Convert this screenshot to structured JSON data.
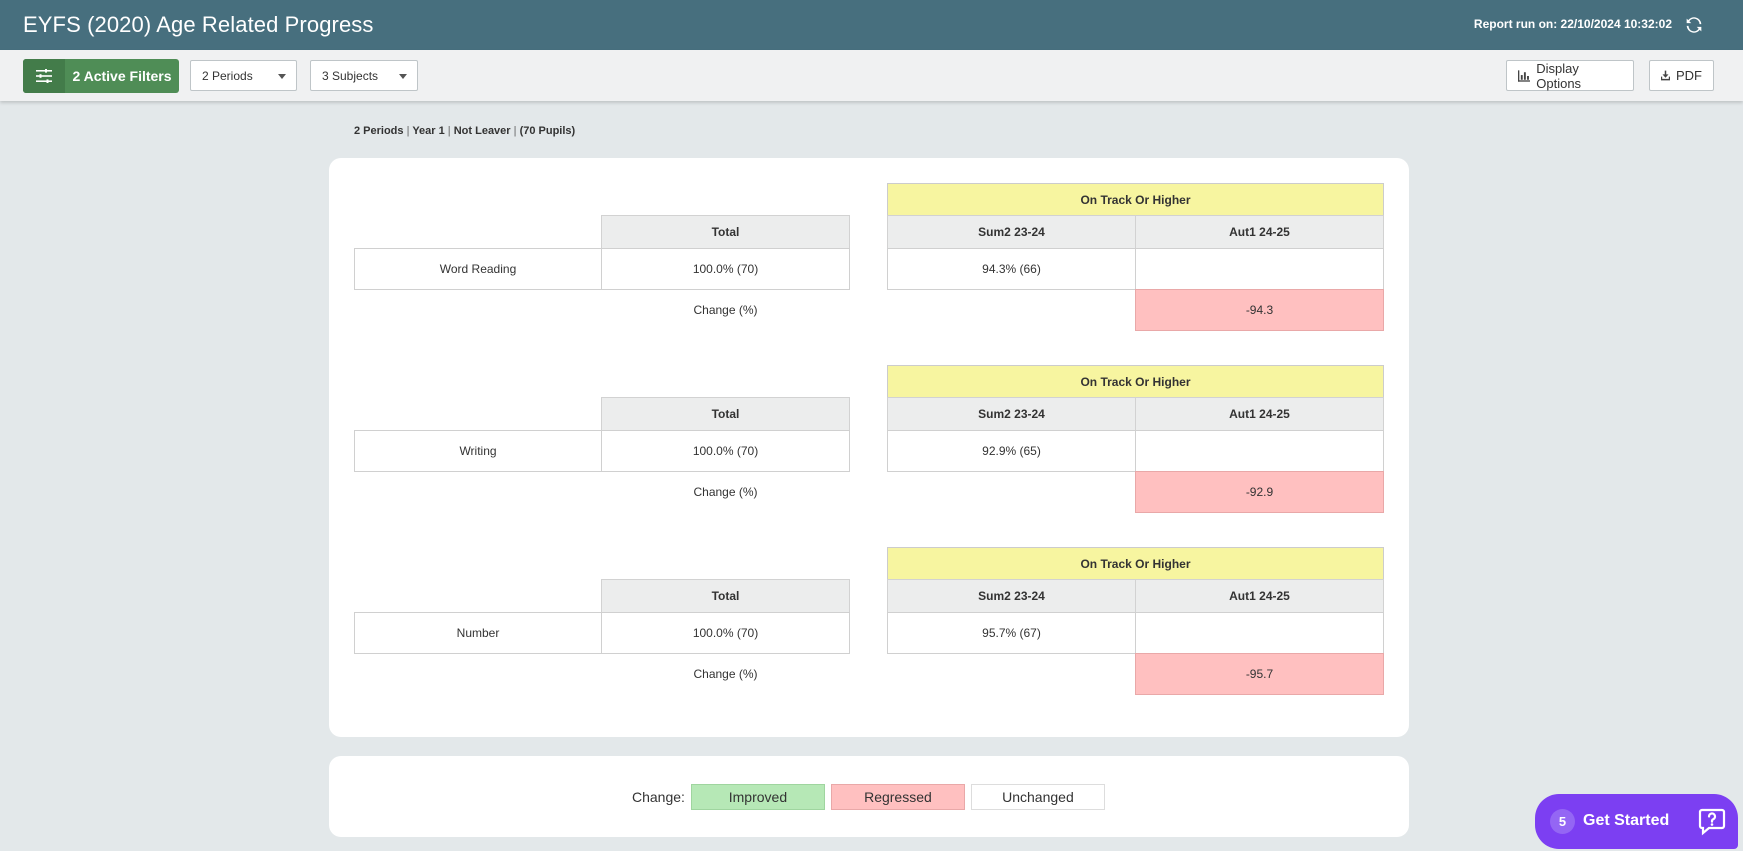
{
  "header": {
    "title": "EYFS (2020) Age Related Progress",
    "report_run": "Report run on: 22/10/2024 10:32:02",
    "refresh_icon": "refresh-icon"
  },
  "toolbar": {
    "filters_label": "2 Active Filters",
    "filters_icon": "sliders-icon",
    "periods_label": "2 Periods",
    "subjects_label": "3 Subjects",
    "display_options_label": "Display Options",
    "display_options_icon": "bar-chart-icon",
    "pdf_label": "PDF",
    "pdf_icon": "download-icon"
  },
  "summary": {
    "periods": "2 Periods",
    "year": "Year 1",
    "leaver": "Not Leaver",
    "pupils": "(70 Pupils)",
    "separator": "|"
  },
  "table_labels": {
    "group_header": "On Track Or Higher",
    "total_header": "Total",
    "period1": "Sum2 23-24",
    "period2": "Aut1 24-25",
    "change_label": "Change (%)"
  },
  "subjects": [
    {
      "name": "Word Reading",
      "total": "100.0% (70)",
      "period1_value": "94.3% (66)",
      "period2_value": "",
      "change": "-94.3",
      "change_status": "regressed"
    },
    {
      "name": "Writing",
      "total": "100.0% (70)",
      "period1_value": "92.9% (65)",
      "period2_value": "",
      "change": "-92.9",
      "change_status": "regressed"
    },
    {
      "name": "Number",
      "total": "100.0% (70)",
      "period1_value": "95.7% (67)",
      "period2_value": "",
      "change": "-95.7",
      "change_status": "regressed"
    }
  ],
  "legend": {
    "label": "Change:",
    "improved": "Improved",
    "regressed": "Regressed",
    "unchanged": "Unchanged",
    "colors": {
      "improved": "#b6e8b6",
      "regressed": "#ffc0c0",
      "unchanged": "#ffffff"
    }
  },
  "get_started": {
    "count": "5",
    "label": "Get Started",
    "icon": "chat-help-icon"
  },
  "colors": {
    "header_bg": "#476f7e",
    "filter_green": "#4f8d56",
    "group_header_yellow": "#f7f5a0",
    "get_started_purple": "#7c3ff2"
  }
}
